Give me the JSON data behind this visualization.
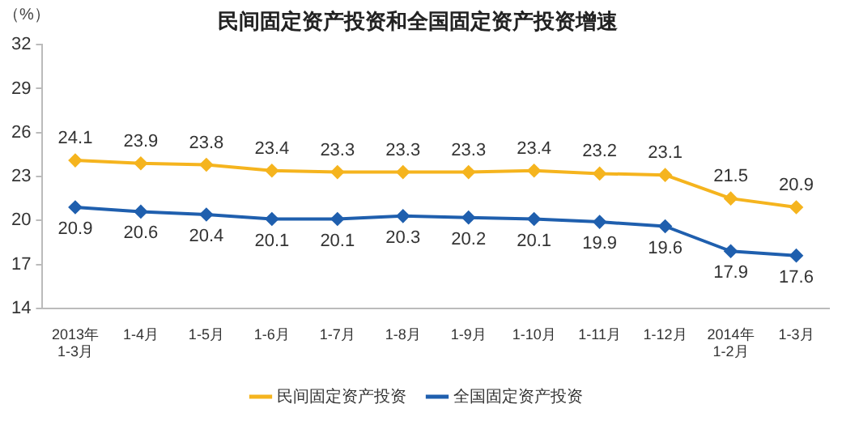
{
  "chart_data": {
    "type": "line",
    "title": "民间固定资产投资和全国固定资产投资增速",
    "ylabel": "（%）",
    "categories": [
      "2013年\n1-3月",
      "1-4月",
      "1-5月",
      "1-6月",
      "1-7月",
      "1-8月",
      "1-9月",
      "1-10月",
      "1-11月",
      "1-12月",
      "2014年\n1-2月",
      "1-3月"
    ],
    "series": [
      {
        "name": "民间固定资产投资",
        "color": "#f5b41e",
        "values": [
          24.1,
          23.9,
          23.8,
          23.4,
          23.3,
          23.3,
          23.3,
          23.4,
          23.2,
          23.1,
          21.5,
          20.9
        ]
      },
      {
        "name": "全国固定资产投资",
        "color": "#1f5fae",
        "values": [
          20.9,
          20.6,
          20.4,
          20.1,
          20.1,
          20.3,
          20.2,
          20.1,
          19.9,
          19.6,
          17.9,
          17.6
        ]
      }
    ],
    "ylim": [
      14,
      32
    ],
    "yticks": [
      14,
      17,
      20,
      23,
      26,
      29,
      32
    ],
    "grid": false,
    "legend": "bottom",
    "marker": "diamond",
    "line_style": "solid",
    "data_labels": true
  }
}
